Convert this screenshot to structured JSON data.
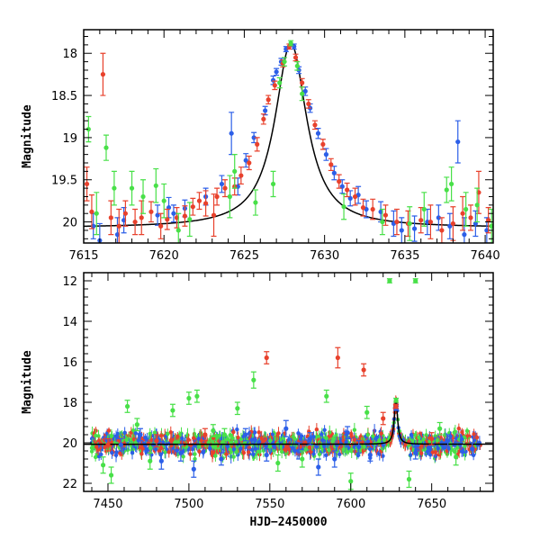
{
  "chart_data": [
    {
      "type": "scatter",
      "panel": "top",
      "xlabel": "",
      "ylabel": "Magnitude",
      "xlim": [
        7615,
        7640.5
      ],
      "ylim": [
        20.25,
        17.72
      ],
      "y_inverted": true,
      "xticks": [
        7615,
        7620,
        7625,
        7630,
        7635,
        7640
      ],
      "yticks": [
        18,
        18.5,
        19,
        19.5,
        20
      ],
      "model_curve": {
        "peak_x": 7627.9,
        "peak_mag": 17.88,
        "baseline_mag": 20.07,
        "width_days": 1.2,
        "color": "#000000"
      },
      "series": [
        {
          "color": "#2c5fe8",
          "points": [
            [
              7615.6,
              20.05,
              0.15
            ],
            [
              7616.0,
              20.22,
              0.2
            ],
            [
              7617.1,
              20.15,
              0.2
            ],
            [
              7617.5,
              19.98,
              0.15
            ],
            [
              7619.6,
              19.92,
              0.12
            ],
            [
              7620.3,
              19.83,
              0.12
            ],
            [
              7620.6,
              19.9,
              0.1
            ],
            [
              7621.3,
              19.84,
              0.1
            ],
            [
              7622.6,
              19.7,
              0.1
            ],
            [
              7623.6,
              19.55,
              0.1
            ],
            [
              7624.2,
              18.95,
              0.25
            ],
            [
              7624.6,
              19.58,
              0.1
            ],
            [
              7625.1,
              19.27,
              0.08
            ],
            [
              7625.6,
              19.0,
              0.06
            ],
            [
              7626.3,
              18.68,
              0.05
            ],
            [
              7626.8,
              18.32,
              0.05
            ],
            [
              7627.0,
              18.22,
              0.04
            ],
            [
              7627.3,
              18.1,
              0.04
            ],
            [
              7627.6,
              17.95,
              0.03
            ],
            [
              7628.1,
              17.92,
              0.03
            ],
            [
              7628.4,
              18.2,
              0.04
            ],
            [
              7628.8,
              18.45,
              0.05
            ],
            [
              7629.1,
              18.65,
              0.05
            ],
            [
              7629.6,
              18.95,
              0.06
            ],
            [
              7630.1,
              19.2,
              0.07
            ],
            [
              7630.6,
              19.42,
              0.08
            ],
            [
              7631.1,
              19.58,
              0.08
            ],
            [
              7631.6,
              19.72,
              0.09
            ],
            [
              7632.1,
              19.68,
              0.1
            ],
            [
              7632.6,
              19.85,
              0.1
            ],
            [
              7633.5,
              19.88,
              0.12
            ],
            [
              7634.3,
              20.02,
              0.15
            ],
            [
              7634.8,
              20.1,
              0.15
            ],
            [
              7635.6,
              20.08,
              0.15
            ],
            [
              7636.4,
              20.0,
              0.15
            ],
            [
              7637.1,
              19.95,
              0.15
            ],
            [
              7637.8,
              20.05,
              0.15
            ],
            [
              7638.3,
              19.05,
              0.25
            ],
            [
              7638.7,
              20.15,
              0.2
            ],
            [
              7639.4,
              20.02,
              0.15
            ],
            [
              7640.1,
              20.1,
              0.15
            ]
          ]
        },
        {
          "color": "#e8412c",
          "points": [
            [
              7615.2,
              19.55,
              0.2
            ],
            [
              7615.5,
              19.88,
              0.2
            ],
            [
              7616.2,
              18.25,
              0.25
            ],
            [
              7616.7,
              19.95,
              0.2
            ],
            [
              7617.2,
              20.05,
              0.2
            ],
            [
              7617.6,
              19.9,
              0.15
            ],
            [
              7618.2,
              20.0,
              0.15
            ],
            [
              7618.6,
              19.95,
              0.2
            ],
            [
              7619.2,
              19.88,
              0.12
            ],
            [
              7619.8,
              20.05,
              0.15
            ],
            [
              7620.2,
              19.97,
              0.12
            ],
            [
              7620.8,
              19.95,
              0.12
            ],
            [
              7621.3,
              19.93,
              0.12
            ],
            [
              7621.8,
              19.82,
              0.1
            ],
            [
              7622.2,
              19.75,
              0.1
            ],
            [
              7622.6,
              19.78,
              0.15
            ],
            [
              7623.1,
              19.92,
              0.25
            ],
            [
              7623.3,
              19.7,
              0.1
            ],
            [
              7623.8,
              19.6,
              0.1
            ],
            [
              7624.4,
              19.58,
              0.1
            ],
            [
              7624.8,
              19.45,
              0.1
            ],
            [
              7625.3,
              19.3,
              0.08
            ],
            [
              7625.8,
              19.08,
              0.08
            ],
            [
              7626.2,
              18.78,
              0.06
            ],
            [
              7626.5,
              18.55,
              0.05
            ],
            [
              7626.9,
              18.38,
              0.05
            ],
            [
              7627.4,
              18.12,
              0.04
            ],
            [
              7627.8,
              17.92,
              0.03
            ],
            [
              7628.2,
              18.05,
              0.04
            ],
            [
              7628.6,
              18.35,
              0.05
            ],
            [
              7629.0,
              18.6,
              0.05
            ],
            [
              7629.4,
              18.85,
              0.05
            ],
            [
              7629.9,
              19.08,
              0.06
            ],
            [
              7630.4,
              19.32,
              0.07
            ],
            [
              7630.9,
              19.52,
              0.08
            ],
            [
              7631.4,
              19.62,
              0.08
            ],
            [
              7631.9,
              19.7,
              0.1
            ],
            [
              7632.4,
              19.83,
              0.1
            ],
            [
              7633.0,
              19.85,
              0.12
            ],
            [
              7633.8,
              19.92,
              0.12
            ],
            [
              7634.5,
              20.0,
              0.15
            ],
            [
              7635.2,
              20.02,
              0.15
            ],
            [
              7636.0,
              19.98,
              0.15
            ],
            [
              7636.6,
              20.0,
              0.2
            ],
            [
              7637.3,
              20.1,
              0.15
            ],
            [
              7638.0,
              20.02,
              0.2
            ],
            [
              7638.6,
              19.9,
              0.2
            ],
            [
              7639.1,
              19.95,
              0.15
            ],
            [
              7639.6,
              19.65,
              0.25
            ],
            [
              7640.2,
              19.98,
              0.15
            ]
          ]
        },
        {
          "color": "#48e048",
          "points": [
            [
              7615.3,
              18.9,
              0.15
            ],
            [
              7615.8,
              19.9,
              0.25
            ],
            [
              7616.4,
              19.12,
              0.15
            ],
            [
              7616.9,
              19.6,
              0.2
            ],
            [
              7618.0,
              19.6,
              0.2
            ],
            [
              7618.7,
              19.7,
              0.2
            ],
            [
              7619.5,
              19.57,
              0.2
            ],
            [
              7620.0,
              19.75,
              0.2
            ],
            [
              7620.9,
              20.1,
              0.2
            ],
            [
              7621.6,
              19.97,
              0.2
            ],
            [
              7624.1,
              19.7,
              0.25
            ],
            [
              7624.4,
              19.4,
              0.2
            ],
            [
              7625.7,
              19.77,
              0.15
            ],
            [
              7626.8,
              19.55,
              0.15
            ],
            [
              7627.2,
              18.35,
              0.06
            ],
            [
              7627.5,
              18.1,
              0.05
            ],
            [
              7627.9,
              17.88,
              0.03
            ],
            [
              7628.3,
              18.15,
              0.05
            ],
            [
              7628.6,
              18.48,
              0.08
            ],
            [
              7631.2,
              19.82,
              0.15
            ],
            [
              7633.6,
              20.0,
              0.15
            ],
            [
              7635.3,
              20.02,
              0.2
            ],
            [
              7636.2,
              19.85,
              0.2
            ],
            [
              7637.6,
              19.62,
              0.15
            ],
            [
              7637.9,
              19.55,
              0.2
            ],
            [
              7638.8,
              19.85,
              0.2
            ],
            [
              7639.5,
              19.8,
              0.2
            ],
            [
              7640.4,
              20.05,
              0.2
            ]
          ]
        }
      ]
    },
    {
      "type": "scatter",
      "panel": "bottom",
      "xlabel": "HJD−2450000",
      "ylabel": "Magnitude",
      "xlim": [
        7435,
        7688
      ],
      "ylim": [
        22.4,
        11.6
      ],
      "y_inverted": true,
      "xticks": [
        7450,
        7500,
        7550,
        7600,
        7650
      ],
      "yticks": [
        12,
        14,
        16,
        18,
        20,
        22
      ],
      "model_curve": {
        "peak_x": 7627.9,
        "peak_mag": 17.88,
        "baseline_mag": 20.07,
        "width_days": 1.2,
        "color": "#000000"
      },
      "noise_band": {
        "x_start": 7440,
        "x_end": 7680,
        "center_mag": 20.05,
        "seed": 7
      },
      "series": [
        {
          "color": "#2c5fe8",
          "points": [
            [
              7458,
              20.1,
              0.3
            ],
            [
              7470,
              19.6,
              0.3
            ],
            [
              7483,
              20.9,
              0.4
            ],
            [
              7495,
              20.5,
              0.4
            ],
            [
              7503,
              21.3,
              0.4
            ],
            [
              7520,
              20.8,
              0.3
            ],
            [
              7535,
              19.6,
              0.3
            ],
            [
              7548,
              20.6,
              0.3
            ],
            [
              7560,
              19.3,
              0.4
            ],
            [
              7568,
              20.4,
              0.4
            ],
            [
              7575,
              19.8,
              0.3
            ],
            [
              7580,
              21.2,
              0.4
            ],
            [
              7590,
              20.8,
              0.4
            ],
            [
              7598,
              19.5,
              0.3
            ],
            [
              7605,
              20.2,
              0.3
            ],
            [
              7612,
              20.6,
              0.3
            ],
            [
              7628,
              18.3,
              0.1
            ],
            [
              7640,
              20.5,
              0.3
            ],
            [
              7660,
              19.9,
              0.3
            ],
            [
              7675,
              20.3,
              0.3
            ]
          ]
        },
        {
          "color": "#e8412c",
          "points": [
            [
              7450,
              20.1,
              0.3
            ],
            [
              7480,
              19.9,
              0.3
            ],
            [
              7510,
              19.6,
              0.3
            ],
            [
              7548,
              15.8,
              0.3
            ],
            [
              7592,
              15.8,
              0.5
            ],
            [
              7608,
              16.4,
              0.3
            ],
            [
              7620,
              18.8,
              0.3
            ],
            [
              7628,
              18.2,
              0.1
            ],
            [
              7650,
              19.8,
              0.3
            ]
          ]
        },
        {
          "color": "#48e048",
          "points": [
            [
              7447,
              21.1,
              0.4
            ],
            [
              7452,
              21.6,
              0.4
            ],
            [
              7462,
              18.2,
              0.3
            ],
            [
              7468,
              19.1,
              0.3
            ],
            [
              7476,
              20.9,
              0.4
            ],
            [
              7490,
              18.4,
              0.3
            ],
            [
              7500,
              17.8,
              0.3
            ],
            [
              7505,
              17.7,
              0.3
            ],
            [
              7515,
              19.4,
              0.3
            ],
            [
              7522,
              19.6,
              0.3
            ],
            [
              7530,
              18.3,
              0.3
            ],
            [
              7540,
              16.9,
              0.4
            ],
            [
              7555,
              21.0,
              0.4
            ],
            [
              7570,
              20.8,
              0.4
            ],
            [
              7585,
              17.7,
              0.3
            ],
            [
              7600,
              21.9,
              0.4
            ],
            [
              7610,
              18.5,
              0.3
            ],
            [
              7624,
              12.0,
              0.1
            ],
            [
              7628,
              17.9,
              0.1
            ],
            [
              7636,
              21.8,
              0.4
            ],
            [
              7640,
              12.0,
              0.1
            ],
            [
              7655,
              19.3,
              0.3
            ],
            [
              7665,
              20.7,
              0.4
            ]
          ]
        }
      ]
    }
  ]
}
